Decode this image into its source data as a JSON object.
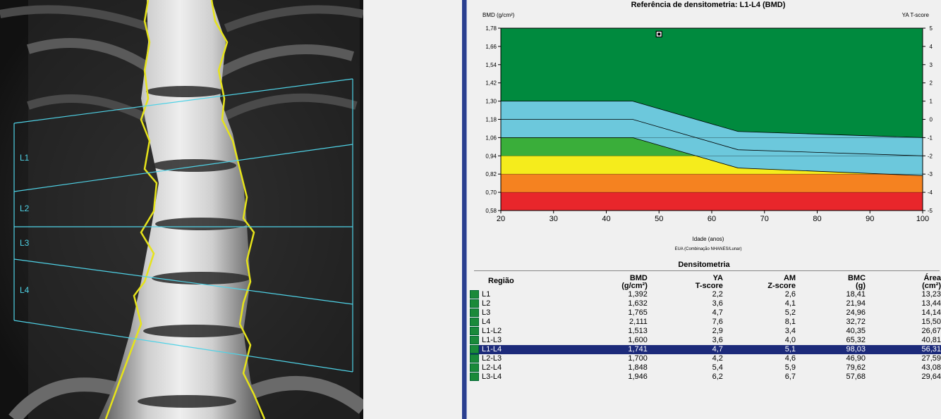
{
  "xray": {
    "vertebra_labels": [
      "L1",
      "L2",
      "L3",
      "L4"
    ]
  },
  "chart": {
    "title": "Referência de densitometria: L1-L4 (BMD)",
    "y_left_label": "BMD (g/cm²)",
    "y_right_label": "YA T-score",
    "x_label": "Idade (anos)",
    "source_note": "EUA (Combinação NHANES/Lunar)"
  },
  "chart_data": {
    "type": "area",
    "title": "Referência de densitometria: L1-L4 (BMD)",
    "xlabel": "Idade (anos)",
    "ylabel": "BMD (g/cm²)",
    "ylabel_right": "YA T-score",
    "xlim": [
      20,
      100
    ],
    "ylim": [
      0.58,
      1.78
    ],
    "x_ticks": [
      20,
      30,
      40,
      50,
      60,
      70,
      80,
      90,
      100
    ],
    "y_ticks": [
      "0,58",
      "0,70",
      "0,82",
      "0,94",
      "1,06",
      "1,18",
      "1,30",
      "1,42",
      "1,54",
      "1,66",
      "1,78"
    ],
    "y_right_ticks": [
      "-5",
      "-4",
      "-3",
      "-2",
      "-1",
      "0",
      "1",
      "2",
      "3",
      "4",
      "5"
    ],
    "bands": {
      "x": [
        20,
        45,
        65,
        100
      ],
      "blue_upper": [
        1.3,
        1.3,
        1.1,
        1.06
      ],
      "blue_mid": [
        1.18,
        1.18,
        0.98,
        0.94
      ],
      "blue_lower": [
        1.06,
        1.06,
        0.86,
        0.81
      ],
      "green_top": 1.06,
      "yellow_top": 0.94,
      "orange_top": 0.82,
      "red_top": 0.7
    },
    "patient_point": {
      "age": 50,
      "bmd": 1.741
    },
    "colors": {
      "dark_green": "#008a3e",
      "light_blue": "#6cc8dc",
      "green": "#3aae3a",
      "yellow": "#f5ec1c",
      "orange": "#f58220",
      "red": "#e8262b"
    }
  },
  "table": {
    "title": "Densitometria",
    "headers": {
      "region": "Região",
      "bmd": [
        "BMD",
        "(g/cm²)"
      ],
      "ya": [
        "YA",
        "T-score"
      ],
      "am": [
        "AM",
        "Z-score"
      ],
      "bmc": [
        "BMC",
        "(g)"
      ],
      "area": [
        "Área",
        "(cm²)"
      ]
    },
    "rows": [
      {
        "region": "L1",
        "bmd": "1,392",
        "ya": "2,2",
        "am": "2,6",
        "bmc": "18,41",
        "area": "13,23"
      },
      {
        "region": "L2",
        "bmd": "1,632",
        "ya": "3,6",
        "am": "4,1",
        "bmc": "21,94",
        "area": "13,44"
      },
      {
        "region": "L3",
        "bmd": "1,765",
        "ya": "4,7",
        "am": "5,2",
        "bmc": "24,96",
        "area": "14,14"
      },
      {
        "region": "L4",
        "bmd": "2,111",
        "ya": "7,6",
        "am": "8,1",
        "bmc": "32,72",
        "area": "15,50"
      },
      {
        "region": "L1-L2",
        "bmd": "1,513",
        "ya": "2,9",
        "am": "3,4",
        "bmc": "40,35",
        "area": "26,67"
      },
      {
        "region": "L1-L3",
        "bmd": "1,600",
        "ya": "3,6",
        "am": "4,0",
        "bmc": "65,32",
        "area": "40,81"
      },
      {
        "region": "L1-L4",
        "bmd": "1,741",
        "ya": "4,7",
        "am": "5,1",
        "bmc": "98,03",
        "area": "56,31",
        "selected": true
      },
      {
        "region": "L2-L3",
        "bmd": "1,700",
        "ya": "4,2",
        "am": "4,6",
        "bmc": "46,90",
        "area": "27,59"
      },
      {
        "region": "L2-L4",
        "bmd": "1,848",
        "ya": "5,4",
        "am": "5,9",
        "bmc": "79,62",
        "area": "43,08"
      },
      {
        "region": "L3-L4",
        "bmd": "1,946",
        "ya": "6,2",
        "am": "6,7",
        "bmc": "57,68",
        "area": "29,64"
      }
    ]
  }
}
